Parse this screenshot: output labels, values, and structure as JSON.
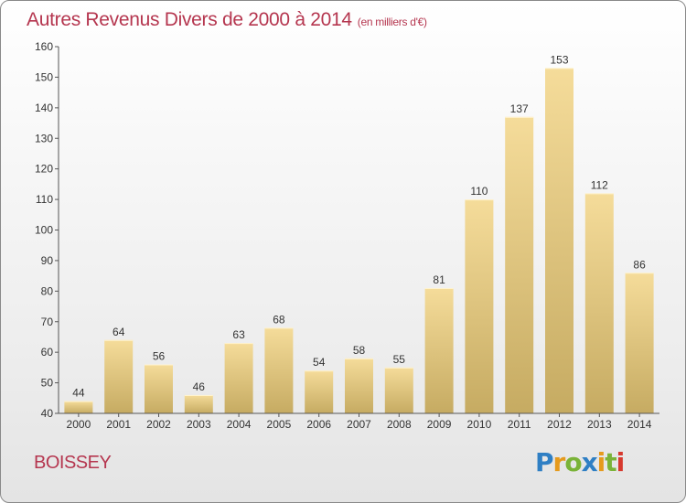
{
  "chart_data": {
    "type": "bar",
    "title": "Autres Revenus Divers de 2000 à 2014",
    "subtitle": "(en milliers d'€)",
    "categories": [
      "2000",
      "2001",
      "2002",
      "2003",
      "2004",
      "2005",
      "2006",
      "2007",
      "2008",
      "2009",
      "2010",
      "2011",
      "2012",
      "2013",
      "2014"
    ],
    "values": [
      44,
      64,
      56,
      46,
      63,
      68,
      54,
      58,
      55,
      81,
      110,
      137,
      153,
      112,
      86
    ],
    "ylim": [
      40,
      160
    ],
    "yticks": [
      40,
      50,
      60,
      70,
      80,
      90,
      100,
      110,
      120,
      130,
      140,
      150,
      160
    ],
    "grid": false,
    "legend": "none",
    "bar_color": "#e8cc86"
  },
  "location": "BOISSEY",
  "brand": {
    "logo_text": "Proxiti"
  }
}
